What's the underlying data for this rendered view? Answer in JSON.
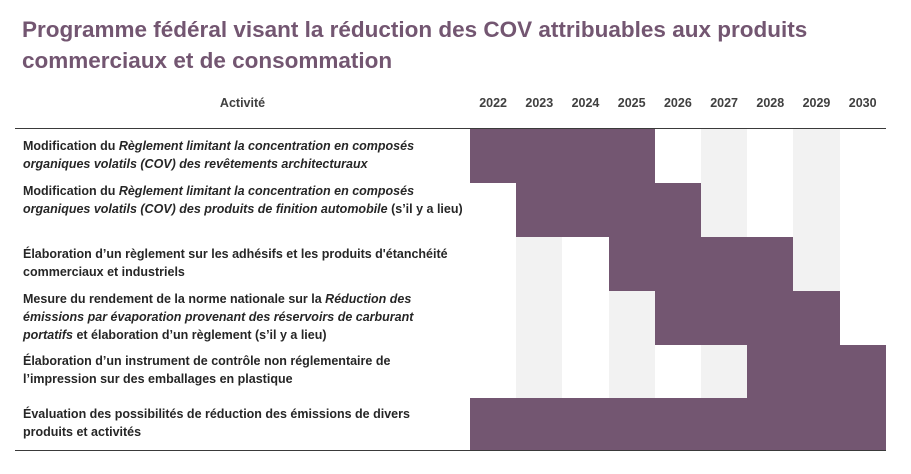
{
  "title": "Programme fédéral visant la réduction des COV attribuables aux produits commerciaux et de consommation",
  "colors": {
    "accent": "#735671",
    "shade": "#f2f2f2"
  },
  "chart_data": {
    "type": "gantt",
    "title": "Programme fédéral visant la réduction des COV attribuables aux produits commerciaux et de consommation",
    "activity_header": "Activité",
    "years": [
      "2022",
      "2023",
      "2024",
      "2025",
      "2026",
      "2027",
      "2028",
      "2029",
      "2030"
    ],
    "shaded_years": [
      "2023",
      "2025",
      "2027",
      "2029"
    ],
    "rows": [
      {
        "label": [
          [
            "Modification du ",
            false
          ],
          [
            "Règlement limitant la concentration en composés organiques volatils (COV) des revêtements architecturaux",
            true
          ]
        ],
        "start": "2022",
        "end": "2025"
      },
      {
        "label": [
          [
            "Modification du ",
            false
          ],
          [
            "Règlement limitant la concentration en composés organiques volatils (COV) des produits de finition automobile",
            true
          ],
          [
            " (s’il y a lieu)",
            false
          ]
        ],
        "start": "2023",
        "end": "2026"
      },
      {
        "label": [
          [
            "Élaboration d’un règlement sur les adhésifs et les produits d'étanchéité commerciaux et industriels",
            false
          ]
        ],
        "start": "2025",
        "end": "2028"
      },
      {
        "label": [
          [
            "Mesure du rendement de la norme nationale sur la ",
            false
          ],
          [
            "Réduction des émissions par évaporation provenant des réservoirs de carburant portatifs",
            true
          ],
          [
            " et élaboration d’un règlement (s’il y a lieu)",
            false
          ]
        ],
        "start": "2026",
        "end": "2029"
      },
      {
        "label": [
          [
            "Élaboration d’un instrument de contrôle non réglementaire de l’impression sur des emballages en plastique",
            false
          ]
        ],
        "start": "2028",
        "end": "2030"
      },
      {
        "label": [
          [
            "Évaluation des possibilités de réduction des émissions de divers produits et activités",
            false
          ]
        ],
        "start": "2022",
        "end": "2030"
      }
    ]
  }
}
